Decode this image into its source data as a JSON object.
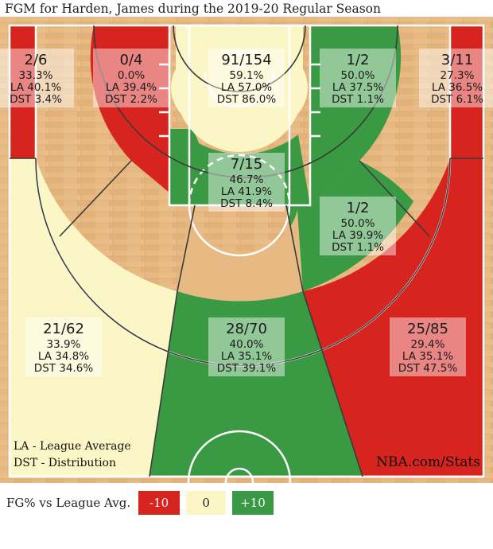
{
  "title": "FGM for Harden, James during the 2019-20 Regular Season",
  "notes": {
    "line1": "LA - League Average",
    "line2": "DST - Distribution",
    "brand": "NBA.com/Stats"
  },
  "legend": {
    "label": "FG% vs League Avg.",
    "negative": "-10",
    "zero": "0",
    "positive": "+10"
  },
  "colors": {
    "red": "#d7241f",
    "yellow": "#fbf6c5",
    "green": "#3a9a44"
  },
  "chart_data": {
    "type": "heatmap",
    "zones": [
      {
        "id": "left-corner-3",
        "fgm_fga": "2/6",
        "fg_pct": "33.3%",
        "la": "LA 40.1%",
        "dst": "DST 3.4%",
        "rating": "negative"
      },
      {
        "id": "left-wing-mid",
        "fgm_fga": "0/4",
        "fg_pct": "0.0%",
        "la": "LA 39.4%",
        "dst": "DST 2.2%",
        "rating": "negative"
      },
      {
        "id": "restricted-area",
        "fgm_fga": "91/154",
        "fg_pct": "59.1%",
        "la": "LA 57.0%",
        "dst": "DST 86.0%",
        "rating": "neutral"
      },
      {
        "id": "right-wing-mid",
        "fgm_fga": "1/2",
        "fg_pct": "50.0%",
        "la": "LA 37.5%",
        "dst": "DST 1.1%",
        "rating": "positive"
      },
      {
        "id": "right-corner-3",
        "fgm_fga": "3/11",
        "fg_pct": "27.3%",
        "la": "LA 36.5%",
        "dst": "DST 6.1%",
        "rating": "negative"
      },
      {
        "id": "paint-non-ra",
        "fgm_fga": "7/15",
        "fg_pct": "46.7%",
        "la": "LA 41.9%",
        "dst": "DST 8.4%",
        "rating": "positive"
      },
      {
        "id": "right-elbow-mid",
        "fgm_fga": "1/2",
        "fg_pct": "50.0%",
        "la": "LA 39.9%",
        "dst": "DST 1.1%",
        "rating": "positive"
      },
      {
        "id": "left-wing-3",
        "fgm_fga": "21/62",
        "fg_pct": "33.9%",
        "la": "LA 34.8%",
        "dst": "DST 34.6%",
        "rating": "neutral"
      },
      {
        "id": "top-key-3",
        "fgm_fga": "28/70",
        "fg_pct": "40.0%",
        "la": "LA 35.1%",
        "dst": "DST 39.1%",
        "rating": "positive"
      },
      {
        "id": "right-wing-3",
        "fgm_fga": "25/85",
        "fg_pct": "29.4%",
        "la": "LA 35.1%",
        "dst": "DST 47.5%",
        "rating": "negative"
      }
    ]
  }
}
